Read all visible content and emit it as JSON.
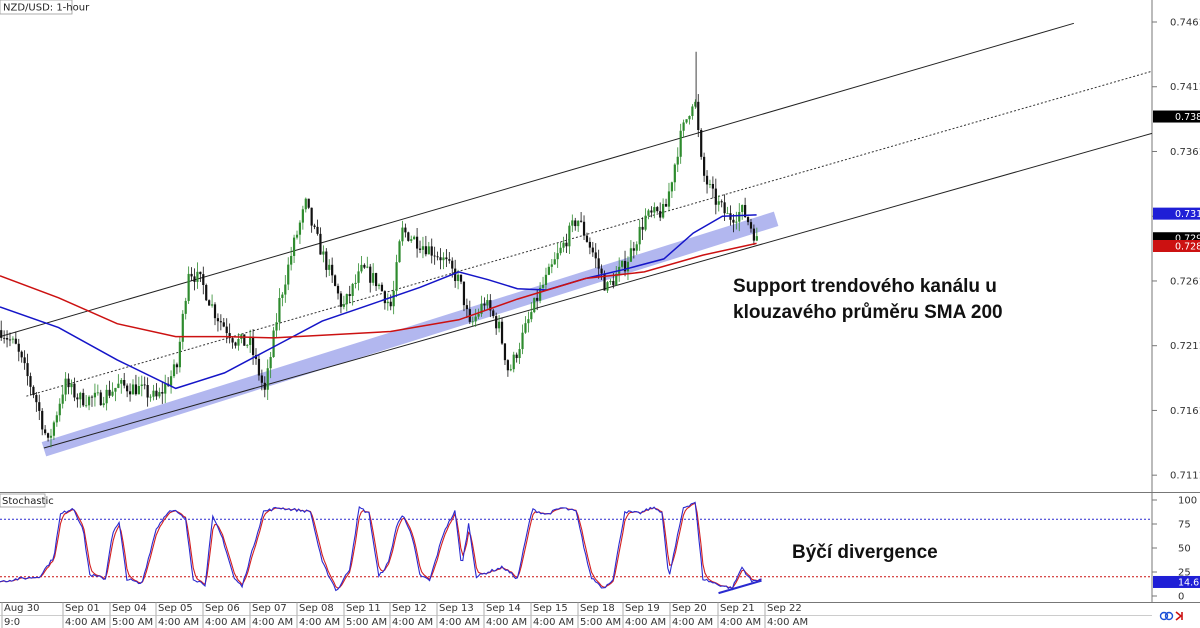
{
  "chart_data": [
    {
      "type": "candlestick",
      "title": "NZD/USD: 1-hour",
      "ylim": [
        0.7098,
        0.7478
      ],
      "y_ticks": [
        "0.7461",
        "0.7411",
        "0.7361",
        "0.7311",
        "0.7261",
        "0.7211",
        "0.7161",
        "0.7111"
      ],
      "y_tick_values": [
        0.7461,
        0.7411,
        0.7361,
        0.7311,
        0.7261,
        0.7211,
        0.7161,
        0.7111
      ],
      "x_index_range": [
        0,
        1180
      ],
      "close_path": [
        [
          0,
          0.7223
        ],
        [
          15,
          0.721
        ],
        [
          35,
          0.7171
        ],
        [
          48,
          0.7135
        ],
        [
          65,
          0.7182
        ],
        [
          80,
          0.717
        ],
        [
          100,
          0.717
        ],
        [
          120,
          0.718
        ],
        [
          140,
          0.7178
        ],
        [
          160,
          0.717
        ],
        [
          180,
          0.7195
        ],
        [
          192,
          0.727
        ],
        [
          205,
          0.726
        ],
        [
          220,
          0.7235
        ],
        [
          240,
          0.7215
        ],
        [
          255,
          0.7212
        ],
        [
          270,
          0.7175
        ],
        [
          285,
          0.7245
        ],
        [
          300,
          0.729
        ],
        [
          312,
          0.732
        ],
        [
          320,
          0.73
        ],
        [
          335,
          0.727
        ],
        [
          350,
          0.724
        ],
        [
          370,
          0.727
        ],
        [
          385,
          0.726
        ],
        [
          400,
          0.724
        ],
        [
          410,
          0.73
        ],
        [
          430,
          0.729
        ],
        [
          450,
          0.728
        ],
        [
          470,
          0.726
        ],
        [
          480,
          0.7225
        ],
        [
          495,
          0.7245
        ],
        [
          510,
          0.7225
        ],
        [
          520,
          0.719
        ],
        [
          535,
          0.722
        ],
        [
          550,
          0.725
        ],
        [
          570,
          0.728
        ],
        [
          590,
          0.731
        ],
        [
          605,
          0.7285
        ],
        [
          620,
          0.7255
        ],
        [
          640,
          0.7275
        ],
        [
          660,
          0.731
        ],
        [
          680,
          0.7315
        ],
        [
          695,
          0.737
        ],
        [
          710,
          0.7405
        ],
        [
          718,
          0.7345
        ],
        [
          730,
          0.7325
        ],
        [
          745,
          0.731
        ],
        [
          760,
          0.7315
        ],
        [
          770,
          0.73
        ],
        [
          775,
          0.729
        ]
      ],
      "sma_blue": [
        [
          0,
          0.7241
        ],
        [
          60,
          0.7225
        ],
        [
          120,
          0.72
        ],
        [
          180,
          0.7178
        ],
        [
          230,
          0.719
        ],
        [
          280,
          0.721
        ],
        [
          330,
          0.723
        ],
        [
          380,
          0.7243
        ],
        [
          430,
          0.7256
        ],
        [
          470,
          0.7268
        ],
        [
          500,
          0.7262
        ],
        [
          530,
          0.7255
        ],
        [
          560,
          0.7254
        ],
        [
          600,
          0.7263
        ],
        [
          640,
          0.727
        ],
        [
          680,
          0.7278
        ],
        [
          710,
          0.7298
        ],
        [
          740,
          0.7311
        ],
        [
          775,
          0.7312
        ]
      ],
      "sma_red_200": [
        [
          0,
          0.7265
        ],
        [
          60,
          0.7248
        ],
        [
          120,
          0.7228
        ],
        [
          180,
          0.7218
        ],
        [
          230,
          0.7218
        ],
        [
          280,
          0.7217
        ],
        [
          330,
          0.7219
        ],
        [
          400,
          0.7222
        ],
        [
          470,
          0.7231
        ],
        [
          530,
          0.7247
        ],
        [
          600,
          0.7263
        ],
        [
          660,
          0.7268
        ],
        [
          720,
          0.7281
        ],
        [
          775,
          0.729
        ]
      ],
      "channel_upper": [
        [
          0,
          0.7218
        ],
        [
          1100,
          0.746
        ]
      ],
      "channel_middle": [
        [
          27,
          0.7172
        ],
        [
          1180,
          0.7423
        ]
      ],
      "channel_lower": [
        [
          45,
          0.7132
        ],
        [
          1180,
          0.7375
        ]
      ],
      "support_zone": [
        [
          45,
          0.7131
        ],
        [
          795,
          0.7309
        ]
      ],
      "annotation": [
        "Support trendového kanálu u",
        "klouzavého průměru SMA 200"
      ],
      "price_badges": [
        {
          "label": "0.7388",
          "value": 0.7388,
          "bg": "#000000",
          "fg": "#ffffff"
        },
        {
          "label": "0.7313",
          "value": 0.7313,
          "bg": "#1f1fd6",
          "fg": "#ffffff"
        },
        {
          "label": "0.7294",
          "value": 0.7294,
          "bg": "#000000",
          "fg": "#ffffff"
        },
        {
          "label": "0.7288",
          "value": 0.7288,
          "bg": "#cc1111",
          "fg": "#ffffff"
        }
      ],
      "colors": {
        "up": "#2e8b2e",
        "down": "#111111",
        "sma_blue": "#1515c8",
        "sma_red": "#cc1111",
        "zone": "#aab0ee"
      }
    },
    {
      "type": "line",
      "title": "Stochastic",
      "ylim": [
        0,
        100
      ],
      "y_ticks": [
        "100",
        "75",
        "50",
        "25",
        "0"
      ],
      "y_tick_values": [
        100,
        75,
        50,
        25,
        0
      ],
      "levels": [
        80,
        20
      ],
      "k_path": [
        [
          0,
          15
        ],
        [
          20,
          18
        ],
        [
          40,
          20
        ],
        [
          55,
          40
        ],
        [
          62,
          85
        ],
        [
          75,
          92
        ],
        [
          85,
          70
        ],
        [
          92,
          22
        ],
        [
          108,
          18
        ],
        [
          115,
          65
        ],
        [
          122,
          76
        ],
        [
          130,
          18
        ],
        [
          145,
          12
        ],
        [
          160,
          70
        ],
        [
          172,
          88
        ],
        [
          180,
          88
        ],
        [
          190,
          80
        ],
        [
          198,
          18
        ],
        [
          210,
          12
        ],
        [
          218,
          82
        ],
        [
          228,
          60
        ],
        [
          240,
          18
        ],
        [
          248,
          10
        ],
        [
          262,
          60
        ],
        [
          270,
          88
        ],
        [
          285,
          92
        ],
        [
          300,
          90
        ],
        [
          318,
          88
        ],
        [
          330,
          35
        ],
        [
          345,
          5
        ],
        [
          358,
          28
        ],
        [
          368,
          92
        ],
        [
          378,
          86
        ],
        [
          388,
          20
        ],
        [
          398,
          35
        ],
        [
          406,
          72
        ],
        [
          413,
          86
        ],
        [
          423,
          58
        ],
        [
          430,
          22
        ],
        [
          440,
          16
        ],
        [
          455,
          68
        ],
        [
          466,
          88
        ],
        [
          473,
          30
        ],
        [
          480,
          75
        ],
        [
          488,
          20
        ],
        [
          500,
          25
        ],
        [
          515,
          30
        ],
        [
          530,
          18
        ],
        [
          545,
          90
        ],
        [
          560,
          85
        ],
        [
          575,
          92
        ],
        [
          590,
          88
        ],
        [
          605,
          20
        ],
        [
          618,
          8
        ],
        [
          628,
          18
        ],
        [
          640,
          88
        ],
        [
          655,
          86
        ],
        [
          668,
          92
        ],
        [
          678,
          88
        ],
        [
          685,
          18
        ],
        [
          700,
          92
        ],
        [
          712,
          98
        ],
        [
          720,
          18
        ],
        [
          735,
          12
        ],
        [
          750,
          8
        ],
        [
          760,
          30
        ],
        [
          770,
          15
        ],
        [
          780,
          18
        ]
      ],
      "divergence_line": [
        [
          736,
          3
        ],
        [
          780,
          16
        ]
      ],
      "current_badge": {
        "label": "14.61",
        "value": 14.61,
        "bg": "#1f1fd6",
        "fg": "#ffffff"
      },
      "annotation": "Býčí divergence"
    }
  ],
  "x_labels": [
    {
      "top": "Aug 30",
      "bottom": "9:0",
      "x": 2
    },
    {
      "top": "Sep 01",
      "bottom": "4:00 AM",
      "x": 63
    },
    {
      "top": "Sep 04",
      "bottom": "5:00 AM",
      "x": 110
    },
    {
      "top": "Sep 05",
      "bottom": "4:00 AM",
      "x": 156
    },
    {
      "top": "Sep 06",
      "bottom": "4:00 AM",
      "x": 203
    },
    {
      "top": "Sep 07",
      "bottom": "4:00 AM",
      "x": 250
    },
    {
      "top": "Sep 08",
      "bottom": "4:00 AM",
      "x": 297
    },
    {
      "top": "Sep 11",
      "bottom": "5:00 AM",
      "x": 344
    },
    {
      "top": "Sep 12",
      "bottom": "4:00 AM",
      "x": 390
    },
    {
      "top": "Sep 13",
      "bottom": "4:00 AM",
      "x": 437
    },
    {
      "top": "Sep 14",
      "bottom": "4:00 AM",
      "x": 484
    },
    {
      "top": "Sep 15",
      "bottom": "4:00 AM",
      "x": 531
    },
    {
      "top": "Sep 18",
      "bottom": "5:00 AM",
      "x": 578
    },
    {
      "top": "Sep 19",
      "bottom": "4:00 AM",
      "x": 623
    },
    {
      "top": "Sep 20",
      "bottom": "4:00 AM",
      "x": 670
    },
    {
      "top": "Sep 21",
      "bottom": "4:00 AM",
      "x": 718
    },
    {
      "top": "Sep 22",
      "bottom": "4:00 AM",
      "x": 765
    }
  ],
  "footer_icons": [
    "link-icon",
    "next-arrow-icon"
  ]
}
